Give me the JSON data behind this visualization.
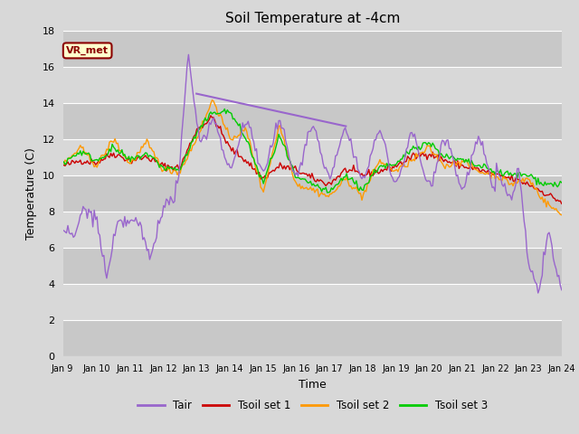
{
  "title": "Soil Temperature at -4cm",
  "xlabel": "Time",
  "ylabel": "Temperature (C)",
  "ylim": [
    0,
    18
  ],
  "background_color": "#d8d8d8",
  "plot_bg_color": "#d8d8d8",
  "annotation_text": "VR_met",
  "annotation_bg": "#ffffcc",
  "annotation_border": "#8B0000",
  "annotation_text_color": "#8B0000",
  "xtick_labels": [
    "Jan 9 ",
    "Jan 10",
    "Jan 11",
    "Jan 12",
    "Jan 13",
    "Jan 14",
    "Jan 15",
    "Jan 16",
    "Jan 17",
    "Jan 18",
    "Jan 19",
    "Jan 20",
    "Jan 21",
    "Jan 22",
    "Jan 23",
    "Jan 24"
  ],
  "colors": {
    "Tair": "#9966cc",
    "Tsoil1": "#cc0000",
    "Tsoil2": "#ff9900",
    "Tsoil3": "#00cc00"
  },
  "legend_labels": [
    "Tair",
    "Tsoil set 1",
    "Tsoil set 2",
    "Tsoil set 3"
  ],
  "diag_line": [
    [
      4.0,
      14.5
    ],
    [
      8.5,
      12.7
    ]
  ],
  "figsize": [
    6.4,
    4.8
  ],
  "dpi": 100
}
